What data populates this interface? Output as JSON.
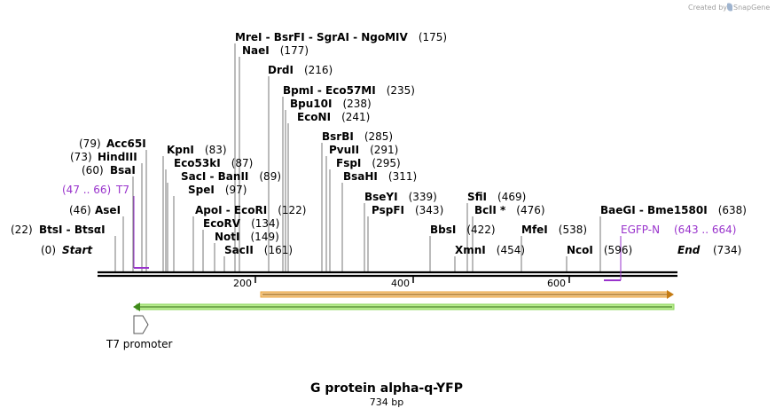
{
  "credit": {
    "prefix": "Created by",
    "brand": "SnapGene",
    "color": "#9fa8b5"
  },
  "title": "G protein alpha-q-YFP",
  "length_label": "734 bp",
  "sequence_length": 734,
  "colors": {
    "backbone": "#000000",
    "feature_purple": "#9933cc",
    "orange_arrow": "#e8a23a",
    "green_arrow": "#8bd65a"
  },
  "ends": {
    "start": {
      "pos": "(0)",
      "name": "Start"
    },
    "end": {
      "name": "End",
      "pos": "(734)"
    }
  },
  "ticks": [
    {
      "value": 200,
      "label": "200"
    },
    {
      "value": 400,
      "label": "400"
    },
    {
      "value": 600,
      "label": "600"
    }
  ],
  "sites": [
    {
      "id": "mrei",
      "text": "MreI  -  BsrFI  -  SgrAI  -  NgoMIV",
      "pos": "(175)",
      "site": 175,
      "num_after": true
    },
    {
      "id": "naei",
      "text": "NaeI",
      "pos": "(177)",
      "site": 177,
      "num_after": true
    },
    {
      "id": "drdi",
      "text": "DrdI",
      "pos": "(216)",
      "site": 216,
      "num_after": true
    },
    {
      "id": "bpmi",
      "text": "BpmI  -  Eco57MI",
      "pos": "(235)",
      "site": 235,
      "num_after": true
    },
    {
      "id": "bpu10i",
      "text": "Bpu10I",
      "pos": "(238)",
      "site": 238,
      "num_after": true
    },
    {
      "id": "econi",
      "text": "EcoNI",
      "pos": "(241)",
      "site": 241,
      "num_after": true
    },
    {
      "id": "bsrbi",
      "text": "BsrBI",
      "pos": "(285)",
      "site": 285,
      "num_after": true
    },
    {
      "id": "pvuii",
      "text": "PvuII",
      "pos": "(291)",
      "site": 291,
      "num_after": true
    },
    {
      "id": "fspi",
      "text": "FspI",
      "pos": "(295)",
      "site": 295,
      "num_after": true
    },
    {
      "id": "bsahi",
      "text": "BsaHI",
      "pos": "(311)",
      "site": 311,
      "num_after": true
    },
    {
      "id": "bseyi",
      "text": "BseYI",
      "pos": "(339)",
      "site": 339,
      "num_after": true
    },
    {
      "id": "pspfi",
      "text": "PspFI",
      "pos": "(343)",
      "site": 343,
      "num_after": true
    },
    {
      "id": "bbsi",
      "text": "BbsI",
      "pos": "(422)",
      "site": 422,
      "num_after": true
    },
    {
      "id": "sfii",
      "text": "SfiI",
      "pos": "(469)",
      "site": 469,
      "num_after": true
    },
    {
      "id": "bcli",
      "text": "BclI *",
      "pos": "(476)",
      "site": 476,
      "num_after": true
    },
    {
      "id": "xmni",
      "text": "XmnI",
      "pos": "(454)",
      "site": 454,
      "num_after": true
    },
    {
      "id": "mfei",
      "text": "MfeI",
      "pos": "(538)",
      "site": 538,
      "num_after": true
    },
    {
      "id": "ncoi",
      "text": "NcoI",
      "pos": "(596)",
      "site": 596,
      "num_after": true
    },
    {
      "id": "baegi",
      "text": "BaeGI  -  Bme1580I",
      "pos": "(638)",
      "site": 638,
      "num_after": true
    },
    {
      "id": "kpni",
      "text": "KpnI",
      "pos": "(83)",
      "site": 83,
      "num_after": true
    },
    {
      "id": "eco53ki",
      "text": "Eco53kI",
      "pos": "(87)",
      "site": 87,
      "num_after": true
    },
    {
      "id": "saci",
      "text": "SacI  -  BanII",
      "pos": "(89)",
      "site": 89,
      "num_after": true
    },
    {
      "id": "spei",
      "text": "SpeI",
      "pos": "(97)",
      "site": 97,
      "num_after": true
    },
    {
      "id": "apoi",
      "text": "ApoI  -  EcoRI",
      "pos": "(122)",
      "site": 122,
      "num_after": true
    },
    {
      "id": "ecorv",
      "text": "EcoRV",
      "pos": "(134)",
      "site": 134,
      "num_after": true
    },
    {
      "id": "noti",
      "text": "NotI",
      "pos": "(149)",
      "site": 149,
      "num_after": true
    },
    {
      "id": "sacii",
      "text": "SacII",
      "pos": "(161)",
      "site": 161,
      "num_after": true
    },
    {
      "id": "acc65i",
      "text": "Acc65I",
      "pos": "(79)",
      "site": 79,
      "num_after": false
    },
    {
      "id": "hindiii",
      "text": "HindIII",
      "pos": "(73)",
      "site": 73,
      "num_after": false
    },
    {
      "id": "bsai",
      "text": "BsaI",
      "pos": "(60)",
      "site": 60,
      "num_after": false
    },
    {
      "id": "asei",
      "text": "AseI",
      "pos": "(46)",
      "site": 46,
      "num_after": false
    },
    {
      "id": "btsi",
      "text": "BtsI  -  BtsαI",
      "pos": "(22)",
      "site": 22,
      "num_after": false
    }
  ],
  "features": [
    {
      "id": "t7",
      "name": "T7",
      "range": "(47 .. 66)",
      "start": 47,
      "end": 66
    },
    {
      "id": "egfp",
      "name": "EGFP-N",
      "range": "(643 .. 664)",
      "start": 643,
      "end": 664
    }
  ],
  "promoter": {
    "label": "T7 promoter"
  }
}
